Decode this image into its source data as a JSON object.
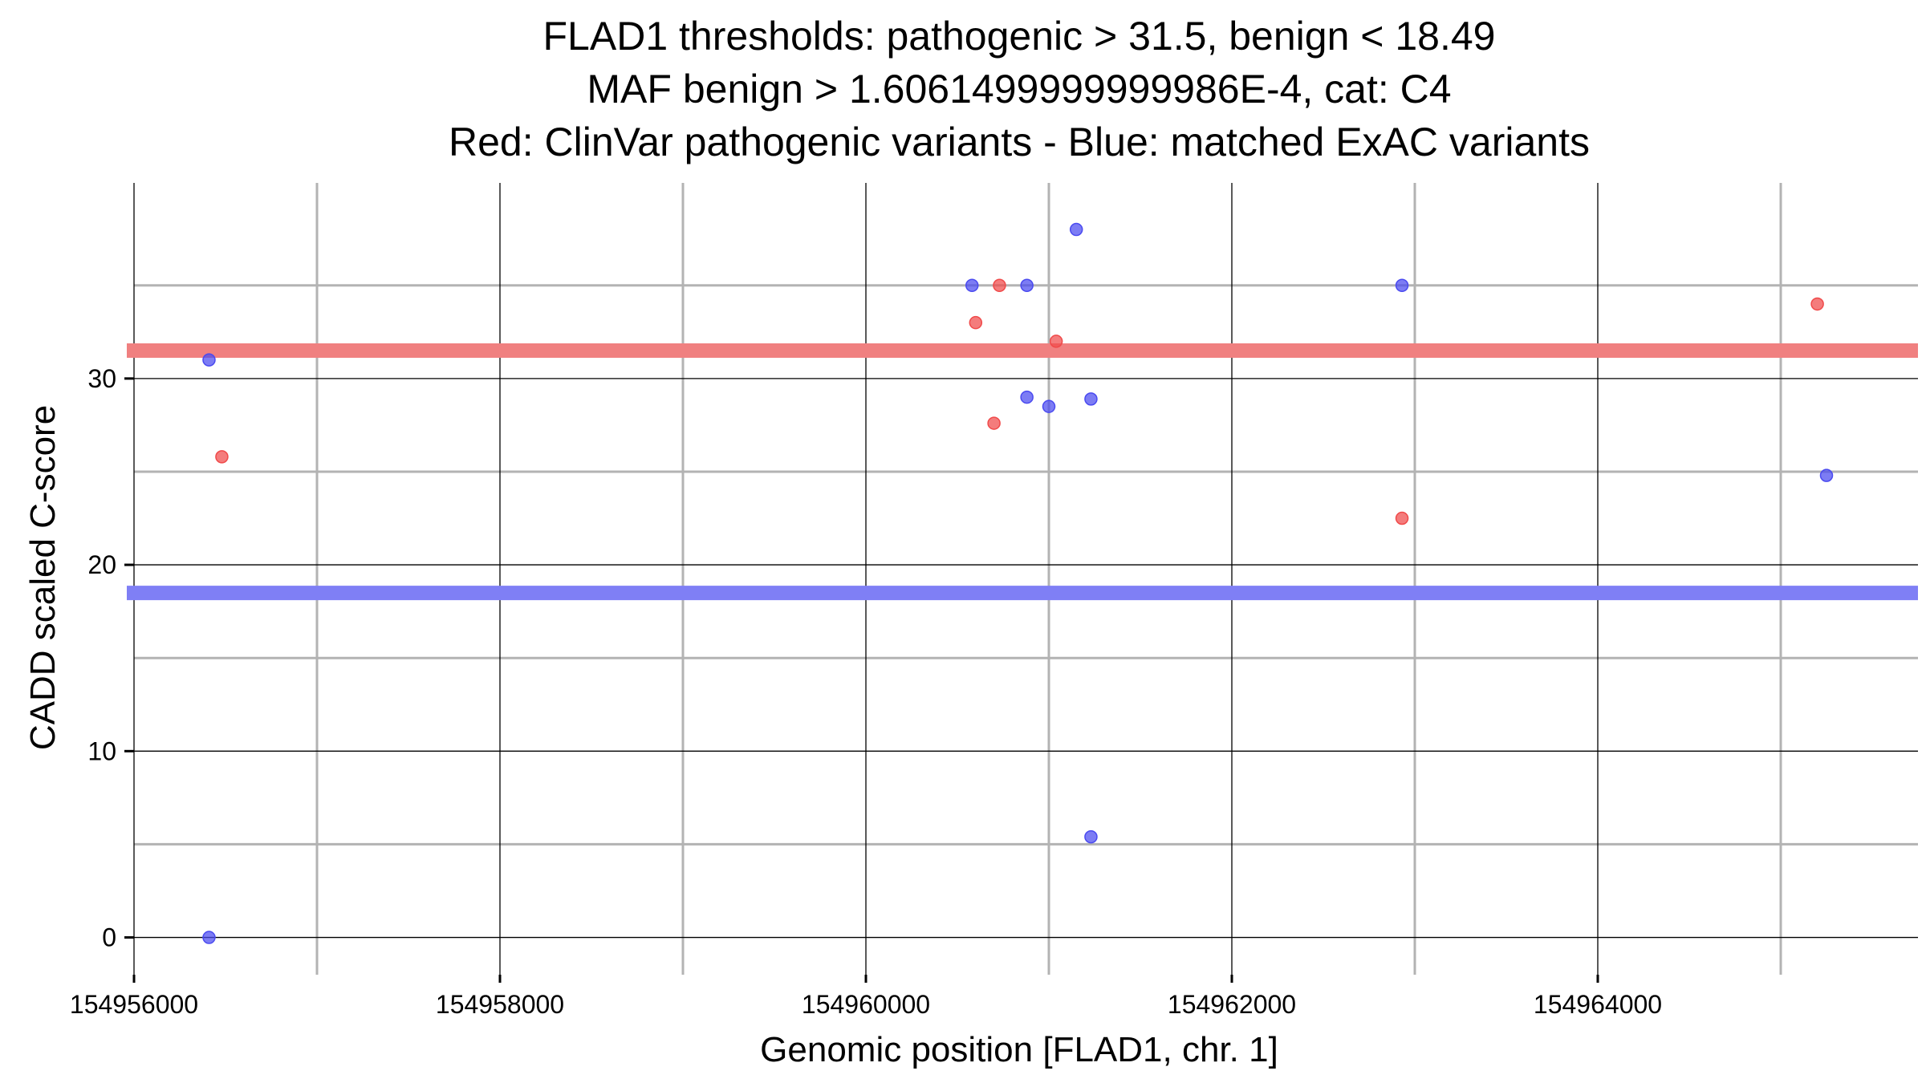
{
  "chart_data": {
    "type": "scatter",
    "title_lines": [
      "FLAD1 thresholds: pathogenic > 31.5, benign < 18.49",
      "MAF benign > 1.6061499999999986E-4, cat: C4",
      "Red: ClinVar pathogenic variants - Blue: matched ExAC variants"
    ],
    "xlabel": "Genomic position [FLAD1, chr. 1]",
    "ylabel": "CADD scaled C-score",
    "xlim": [
      154956000,
      154965750
    ],
    "ylim": [
      -2,
      40.5
    ],
    "x_major_ticks": [
      154956000,
      154958000,
      154960000,
      154962000,
      154964000
    ],
    "x_tick_labels": [
      "154956000",
      "154958000",
      "154960000",
      "154962000",
      "154964000"
    ],
    "x_minor_ticks": [
      154957000,
      154959000,
      154961000,
      154963000,
      154965000
    ],
    "y_major_ticks": [
      0,
      10,
      20,
      30
    ],
    "y_tick_labels": [
      "0",
      "10",
      "20",
      "30"
    ],
    "y_minor_ticks": [
      5,
      15,
      25,
      35
    ],
    "thresholds": [
      {
        "name": "pathogenic",
        "value": 31.5,
        "color": "#f08080"
      },
      {
        "name": "benign",
        "value": 18.49,
        "color": "#7f7ff5"
      }
    ],
    "series": [
      {
        "name": "ClinVar pathogenic variants",
        "color": "#f04a4a",
        "points": [
          {
            "x": 154956480,
            "y": 25.8
          },
          {
            "x": 154960600,
            "y": 33.0
          },
          {
            "x": 154960700,
            "y": 27.6
          },
          {
            "x": 154960730,
            "y": 35.0
          },
          {
            "x": 154961040,
            "y": 32.0
          },
          {
            "x": 154962930,
            "y": 22.5
          },
          {
            "x": 154965200,
            "y": 34.0
          }
        ]
      },
      {
        "name": "matched ExAC variants",
        "color": "#4a4af0",
        "points": [
          {
            "x": 154956410,
            "y": 31.0
          },
          {
            "x": 154956410,
            "y": 0.0
          },
          {
            "x": 154960580,
            "y": 35.0
          },
          {
            "x": 154960880,
            "y": 35.0
          },
          {
            "x": 154960880,
            "y": 29.0
          },
          {
            "x": 154961000,
            "y": 28.5
          },
          {
            "x": 154961150,
            "y": 38.0
          },
          {
            "x": 154961230,
            "y": 28.9
          },
          {
            "x": 154961230,
            "y": 5.4
          },
          {
            "x": 154962930,
            "y": 35.0
          },
          {
            "x": 154965250,
            "y": 24.8
          }
        ]
      }
    ]
  }
}
